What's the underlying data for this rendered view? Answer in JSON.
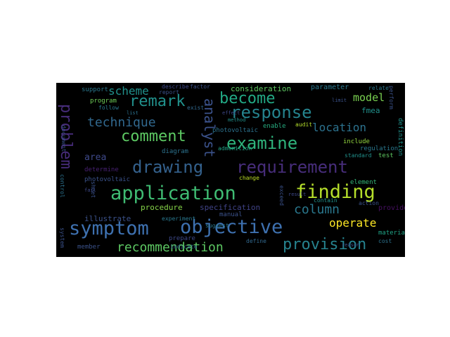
{
  "wordcloud": {
    "background": "#000000",
    "words": [
      {
        "text": "symptom",
        "color": "#3e71b0"
      },
      {
        "text": "objective",
        "color": "#3e71b0"
      },
      {
        "text": "application",
        "color": "#3fbc73"
      },
      {
        "text": "finding",
        "color": "#b5de2b"
      },
      {
        "text": "drawing",
        "color": "#34618d"
      },
      {
        "text": "requirement",
        "color": "#472d7b"
      },
      {
        "text": "examine",
        "color": "#2fb47c"
      },
      {
        "text": "comment",
        "color": "#5dc963"
      },
      {
        "text": "response",
        "color": "#25848e"
      },
      {
        "text": "become",
        "color": "#22a884"
      },
      {
        "text": "remark",
        "color": "#21918c"
      },
      {
        "text": "problem",
        "color": "#472c7a"
      },
      {
        "text": "recommendation",
        "color": "#5dc863"
      },
      {
        "text": "provision",
        "color": "#26828e"
      },
      {
        "text": "analyst",
        "color": "#3b528b"
      },
      {
        "text": "technique",
        "color": "#31688e"
      },
      {
        "text": "scheme",
        "color": "#21918c"
      },
      {
        "text": "location",
        "color": "#2c728e"
      },
      {
        "text": "column",
        "color": "#2a788e"
      },
      {
        "text": "operate",
        "color": "#fde725"
      },
      {
        "text": "model",
        "color": "#7ad151"
      },
      {
        "text": "area",
        "color": "#3e4989"
      },
      {
        "text": "illustrate",
        "color": "#3b528b"
      },
      {
        "text": "procedure",
        "color": "#86d549"
      },
      {
        "text": "specification",
        "color": "#404387"
      },
      {
        "text": "consideration",
        "color": "#5ec962"
      },
      {
        "text": "parameter",
        "color": "#2a788e"
      },
      {
        "text": "photovoltaic",
        "color": "#2c728e"
      },
      {
        "text": "diagram",
        "color": "#2c728e"
      },
      {
        "text": "determine",
        "color": "#482173"
      },
      {
        "text": "photovoltaic",
        "color": "#3b528b"
      },
      {
        "text": "enable",
        "color": "#27ad81"
      },
      {
        "text": "admonition",
        "color": "#20a386"
      },
      {
        "text": "regulation",
        "color": "#2a788e"
      },
      {
        "text": "element",
        "color": "#35b779"
      },
      {
        "text": "include",
        "color": "#95d840"
      },
      {
        "text": "standard",
        "color": "#21918c"
      },
      {
        "text": "member",
        "color": "#3b528b"
      },
      {
        "text": "prepare",
        "color": "#3e4989"
      },
      {
        "text": "manual",
        "color": "#3b528b"
      },
      {
        "text": "suggest",
        "color": "#2a788e"
      },
      {
        "text": "experiment",
        "color": "#2a788e"
      },
      {
        "text": "provide",
        "color": "#471063"
      },
      {
        "text": "material",
        "color": "#20a386"
      },
      {
        "text": "test",
        "color": "#5ec962"
      },
      {
        "text": "contain",
        "color": "#21918c"
      },
      {
        "text": "define",
        "color": "#31688e"
      },
      {
        "text": "action",
        "color": "#3b528b"
      },
      {
        "text": "cost",
        "color": "#2c728e"
      },
      {
        "text": "program",
        "color": "#6ece58"
      },
      {
        "text": "support",
        "color": "#2a788e"
      },
      {
        "text": "follow",
        "color": "#2a788e"
      },
      {
        "text": "report",
        "color": "#3b528b"
      },
      {
        "text": "describe",
        "color": "#3e4989"
      },
      {
        "text": "factor",
        "color": "#3b528b"
      },
      {
        "text": "list",
        "color": "#2c728e"
      },
      {
        "text": "exist",
        "color": "#31688e"
      },
      {
        "text": "method",
        "color": "#21918c"
      },
      {
        "text": "effect",
        "color": "#3e4989"
      },
      {
        "text": "fmea",
        "color": "#21918c"
      },
      {
        "text": "audit",
        "color": "#b5de2b"
      },
      {
        "text": "result",
        "color": "#3e4989"
      },
      {
        "text": "change",
        "color": "#bddf26"
      },
      {
        "text": "exceed",
        "color": "#3b528b"
      },
      {
        "text": "indicate",
        "color": "#31688e"
      },
      {
        "text": "relate",
        "color": "#2a788e"
      },
      {
        "text": "perform",
        "color": "#3b528b"
      },
      {
        "text": "limit",
        "color": "#3b528b"
      },
      {
        "text": "definition",
        "color": "#21918c"
      },
      {
        "text": "reason",
        "color": "#3b528b"
      },
      {
        "text": "control",
        "color": "#2c728e"
      },
      {
        "text": "sheet",
        "color": "#3b528b"
      },
      {
        "text": "system",
        "color": "#3b528b"
      },
      {
        "text": "fail",
        "color": "#3e4989"
      },
      {
        "text": "document",
        "color": "#3b528b"
      }
    ]
  }
}
